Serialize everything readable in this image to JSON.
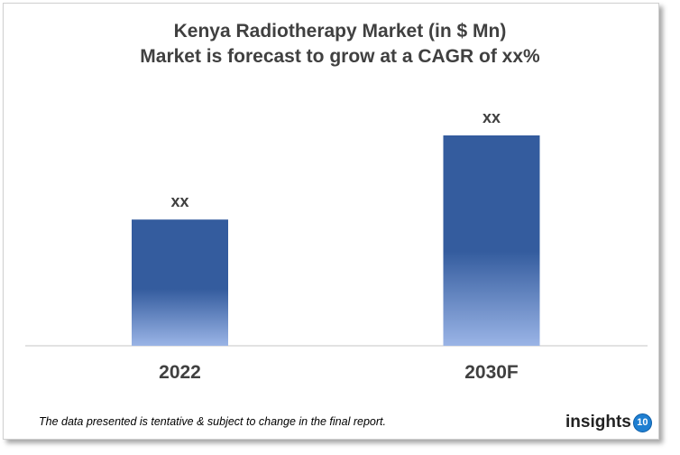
{
  "chart_data": {
    "type": "bar",
    "title": "Kenya Radiotherapy Market (in $ Mn)",
    "subtitle": "Market is forecast to grow at a CAGR of xx%",
    "categories": [
      "2022",
      "2030F"
    ],
    "values": [
      0.6,
      1.0
    ],
    "data_labels": [
      "xx",
      "xx"
    ],
    "xlabel": "",
    "ylabel": "",
    "grid": false,
    "bar_color_top": "#345c9e",
    "bar_color_bottom": "#9ab4e6"
  },
  "footnote": "The data presented is tentative & subject to change in the final report.",
  "logo": {
    "text": "insights",
    "badge": "10",
    "color": "#1f7fd1"
  }
}
